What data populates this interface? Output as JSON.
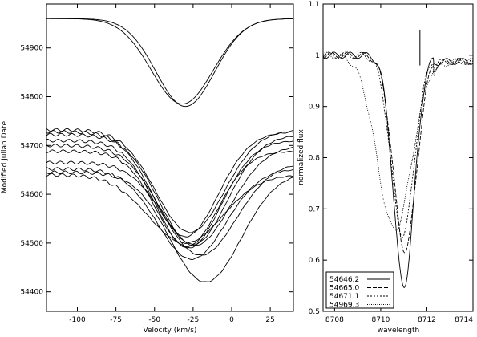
{
  "chart_data": [
    {
      "type": "line",
      "xlabel": "Velocity (km/s)",
      "ylabel": "Modified Julian Date",
      "xlim": [
        -120,
        40
      ],
      "ylim": [
        54360,
        54990
      ],
      "xticks": [
        -100,
        -75,
        -50,
        -25,
        0,
        25
      ],
      "yticks": [
        54400,
        54500,
        54600,
        54700,
        54800,
        54900
      ],
      "grid": false,
      "series": [
        {
          "base": 54960,
          "depth": 180,
          "center": -30,
          "width": 19
        },
        {
          "base": 54960,
          "depth": 175,
          "center": -32,
          "width": 20
        },
        {
          "base": 54732,
          "depth": 210,
          "center": -27,
          "width": 22
        },
        {
          "base": 54728,
          "depth": 215,
          "center": -30,
          "width": 21
        },
        {
          "base": 54722,
          "depth": 225,
          "center": -25,
          "width": 22
        },
        {
          "base": 54710,
          "depth": 220,
          "center": -28,
          "width": 21
        },
        {
          "base": 54700,
          "depth": 205,
          "center": -24,
          "width": 23
        },
        {
          "base": 54688,
          "depth": 195,
          "center": -29,
          "width": 20
        },
        {
          "base": 54665,
          "depth": 190,
          "center": -20,
          "width": 23
        },
        {
          "base": 54652,
          "depth": 185,
          "center": -26,
          "width": 22
        },
        {
          "base": 54645,
          "depth": 225,
          "center": -17,
          "width": 23
        },
        {
          "base": 54640,
          "depth": 140,
          "center": -30,
          "width": 24
        }
      ]
    },
    {
      "type": "line",
      "xlabel": "wavelength",
      "ylabel": "normalized flux",
      "xlim": [
        8707.5,
        8714
      ],
      "ylim": [
        0.5,
        1.1
      ],
      "xticks": [
        8708,
        8710,
        8712,
        8714
      ],
      "yticks": [
        0.5,
        0.6,
        0.7,
        0.8,
        0.9,
        1,
        1.1
      ],
      "grid": false,
      "legend": "bottom-left",
      "marker_line": {
        "x": 8711.7,
        "y": [
          0.98,
          1.05
        ]
      },
      "series": [
        {
          "name": "54646.2",
          "style": "solid",
          "center": 8711.0,
          "depth": 0.45,
          "width": 0.45
        },
        {
          "name": "54665.0",
          "style": "dashed",
          "center": 8711.05,
          "depth": 0.38,
          "width": 0.5
        },
        {
          "name": "54671.1",
          "style": "short-dashed",
          "center": 8710.95,
          "depth": 0.35,
          "width": 0.5
        },
        {
          "name": "54969.3",
          "style": "dotted",
          "center": 8710.6,
          "depth": 0.34,
          "width": 0.75
        }
      ]
    }
  ]
}
